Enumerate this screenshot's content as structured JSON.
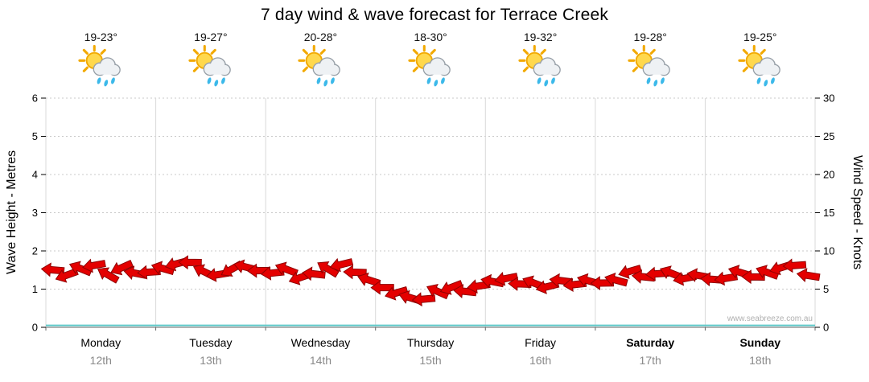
{
  "title": "7 day wind & wave forecast for Terrace Creek",
  "watermark": "www.seabreeze.com.au",
  "days": [
    {
      "name": "Monday",
      "date": "12th",
      "temp": "19-23°",
      "icon": "sun-cloud-showers",
      "weekend": false
    },
    {
      "name": "Tuesday",
      "date": "13th",
      "temp": "19-27°",
      "icon": "sun-cloud-showers",
      "weekend": false
    },
    {
      "name": "Wednesday",
      "date": "14th",
      "temp": "20-28°",
      "icon": "sun-cloud-showers",
      "weekend": false
    },
    {
      "name": "Thursday",
      "date": "15th",
      "temp": "18-30°",
      "icon": "sun-cloud-showers",
      "weekend": false
    },
    {
      "name": "Friday",
      "date": "16th",
      "temp": "19-32°",
      "icon": "sun-cloud-showers",
      "weekend": false
    },
    {
      "name": "Saturday",
      "date": "17th",
      "temp": "19-28°",
      "icon": "sun-cloud-showers",
      "weekend": true
    },
    {
      "name": "Sunday",
      "date": "18th",
      "temp": "19-25°",
      "icon": "sun-cloud-showers",
      "weekend": true
    }
  ],
  "chart_data": {
    "type": "wind-arrows",
    "title": "7 day wind & wave forecast for Terrace Creek",
    "ylabel_left": "Wave Height - Metres",
    "ylabel_right": "Wind Speed - Knots",
    "ylim_left": [
      0,
      6
    ],
    "ylim_right": [
      0,
      30
    ],
    "yticks_left": [
      0,
      1,
      2,
      3,
      4,
      5,
      6
    ],
    "yticks_right": [
      0,
      5,
      10,
      15,
      20,
      25,
      30
    ],
    "categories": [
      "Monday",
      "Tuesday",
      "Wednesday",
      "Thursday",
      "Friday",
      "Saturday",
      "Sunday"
    ],
    "points_per_day": 8,
    "arrow_color": "#e40000",
    "arrow_outline": "#8f0000",
    "wave_color": "#5fc9c9",
    "grid_color": "#c8c8c8",
    "wind_knots": [
      7.2,
      6.6,
      7.6,
      8.1,
      7.0,
      8.0,
      7.4,
      6.9,
      7.5,
      8.2,
      8.5,
      7.4,
      7.1,
      7.9,
      7.6,
      7.2,
      7.0,
      7.6,
      6.6,
      7.2,
      8.0,
      7.9,
      7.0,
      6.1,
      5.2,
      4.6,
      4.1,
      4.0,
      4.4,
      5.0,
      4.6,
      5.4,
      6.1,
      6.6,
      6.0,
      5.5,
      5.1,
      6.0,
      5.6,
      6.2,
      6.0,
      6.5,
      7.0,
      6.4,
      6.9,
      7.1,
      6.5,
      7.0,
      6.6,
      6.1,
      7.0,
      6.5,
      7.2,
      7.9,
      8.3,
      7.1
    ],
    "wind_dir_deg": [
      275,
      250,
      292,
      260,
      300,
      246,
      281,
      266,
      286,
      255,
      271,
      296,
      261,
      241,
      284,
      269,
      264,
      291,
      251,
      276,
      301,
      256,
      272,
      288,
      270,
      254,
      287,
      265,
      294,
      249,
      276,
      261,
      281,
      259,
      272,
      291,
      256,
      277,
      264,
      286,
      269,
      285,
      254,
      276,
      266,
      292,
      259,
      280,
      274,
      261,
      287,
      271,
      290,
      253,
      266,
      279
    ],
    "wave_height_m": [
      0.05,
      0.05,
      0.05,
      0.05,
      0.05,
      0.05,
      0.05
    ]
  }
}
